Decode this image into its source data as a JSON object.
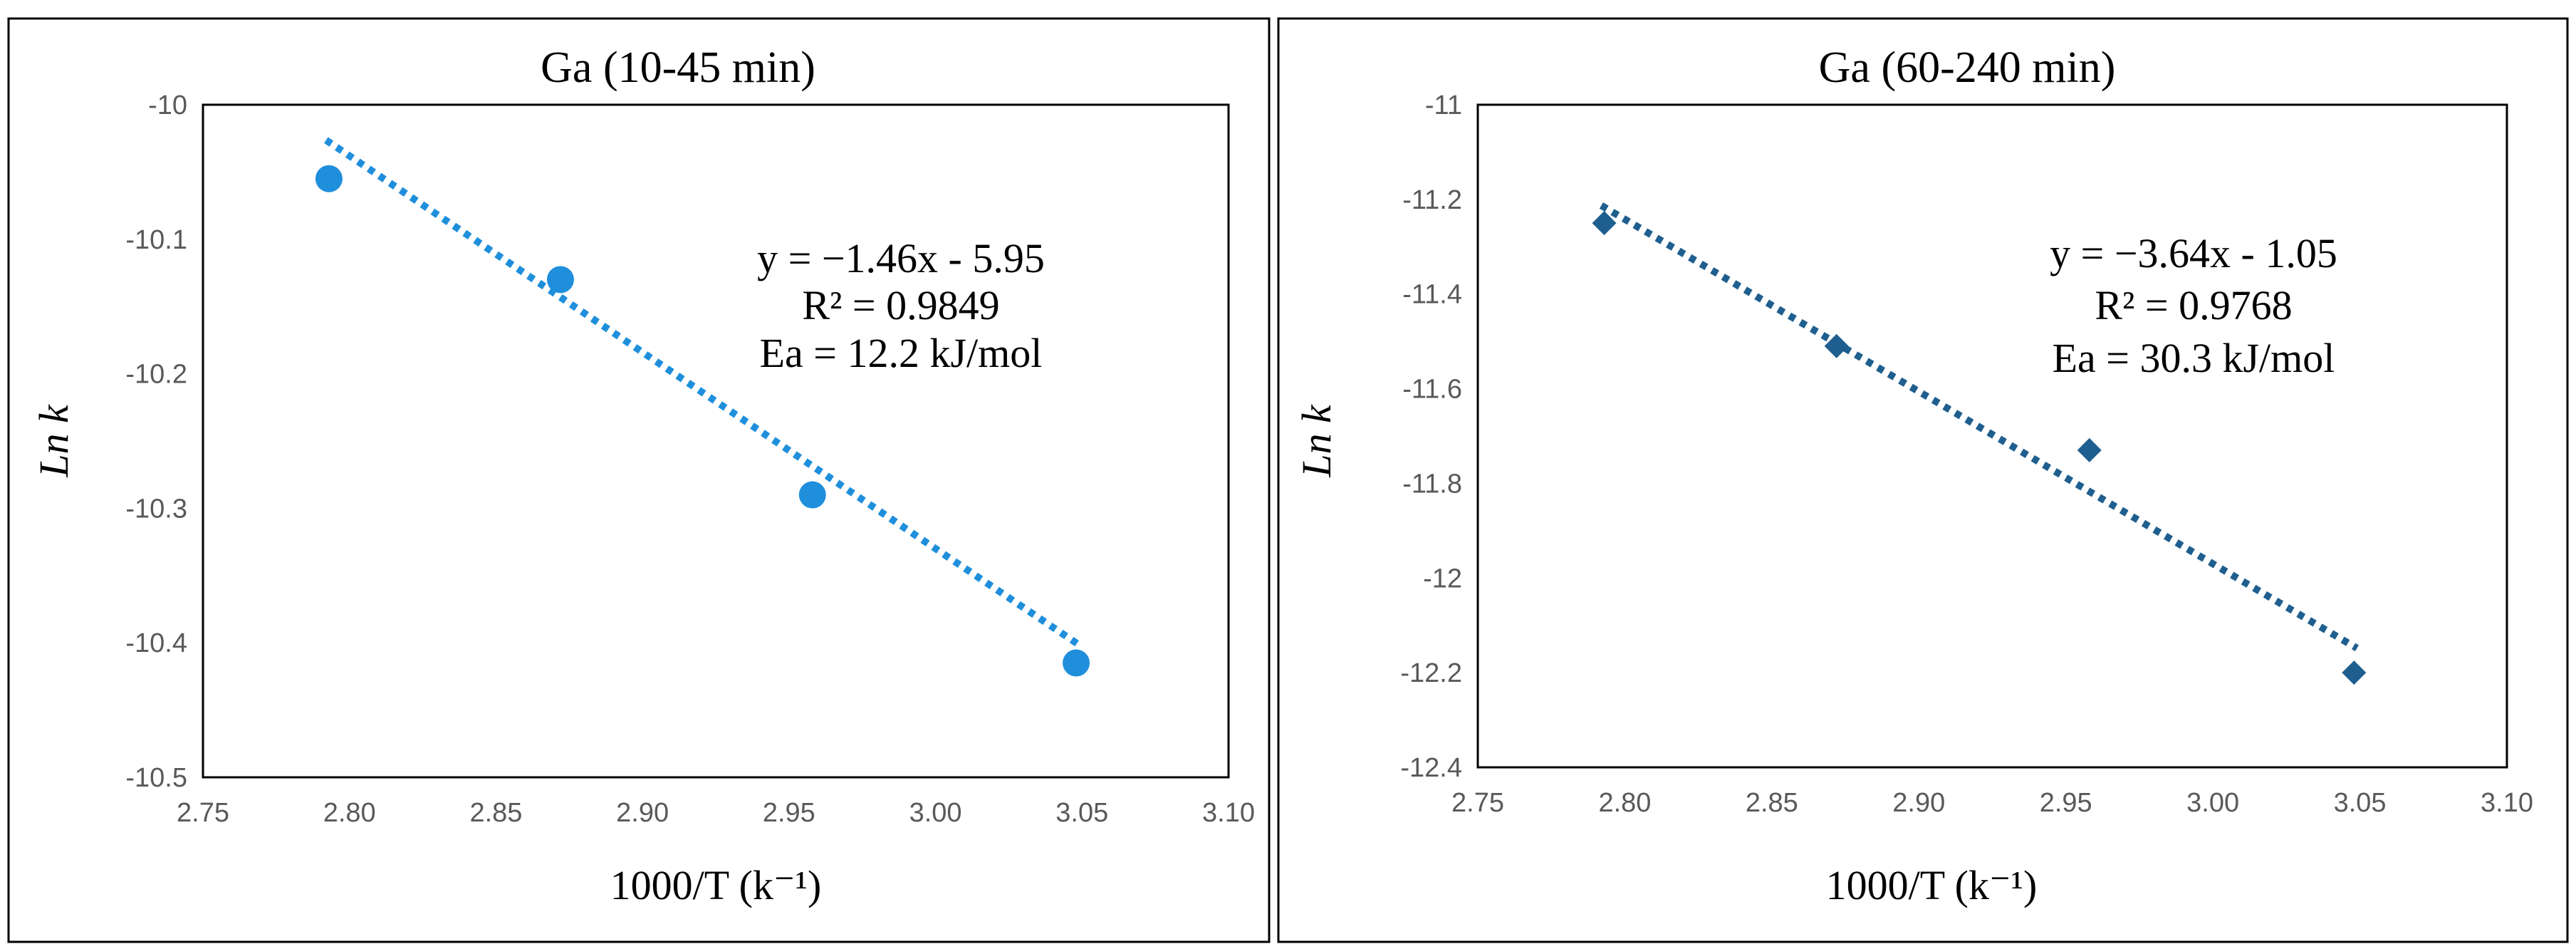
{
  "chart_data": [
    {
      "type": "scatter",
      "title": "Ga (10-45 min)",
      "xlabel": "1000/T (k⁻¹)",
      "ylabel": "Ln k",
      "xlim": [
        2.75,
        3.1
      ],
      "ylim": [
        -10.5,
        -10.0
      ],
      "xticks": [
        "2.75",
        "2.80",
        "2.85",
        "2.90",
        "2.95",
        "3.00",
        "3.05",
        "3.10"
      ],
      "yticks": [
        "-10",
        "-10.1",
        "-10.2",
        "-10.3",
        "-10.4",
        "-10.5"
      ],
      "grid": false,
      "marker": "circle",
      "color": "#1f8fdc",
      "series": [
        {
          "name": "Ga (10-45 min)",
          "x": [
            2.793,
            2.872,
            2.958,
            3.048
          ],
          "y": [
            -10.055,
            -10.13,
            -10.29,
            -10.415
          ]
        }
      ],
      "trendline": {
        "style": "dotted",
        "slope": -1.46,
        "intercept": -5.95,
        "x_range": [
          2.793,
          3.048
        ]
      },
      "annotations": [
        "y = −1.46x - 5.95",
        "R² = 0.9849",
        "Ea = 12.2 kJ/mol"
      ]
    },
    {
      "type": "scatter",
      "title": "Ga (60-240 min)",
      "xlabel": "1000/T (k⁻¹)",
      "ylabel": "Ln k",
      "xlim": [
        2.75,
        3.1
      ],
      "ylim": [
        -12.4,
        -11.0
      ],
      "xticks": [
        "2.75",
        "2.80",
        "2.85",
        "2.90",
        "2.95",
        "3.00",
        "3.05",
        "3.10"
      ],
      "yticks": [
        "-11",
        "-11.2",
        "-11.4",
        "-11.6",
        "-11.8",
        "-12",
        "-12.2",
        "-12.4"
      ],
      "grid": false,
      "marker": "diamond",
      "color": "#1f5f8f",
      "series": [
        {
          "name": "Ga (60-240 min)",
          "x": [
            2.793,
            2.872,
            2.958,
            3.048
          ],
          "y": [
            -11.25,
            -11.51,
            -11.73,
            -12.2
          ]
        }
      ],
      "trendline": {
        "style": "dotted",
        "slope": -3.64,
        "intercept": -1.05,
        "x_range": [
          2.793,
          3.048
        ]
      },
      "annotations": [
        "y = −3.64x - 1.05",
        "R² = 0.9768",
        "Ea = 30.3 kJ/mol"
      ]
    }
  ]
}
